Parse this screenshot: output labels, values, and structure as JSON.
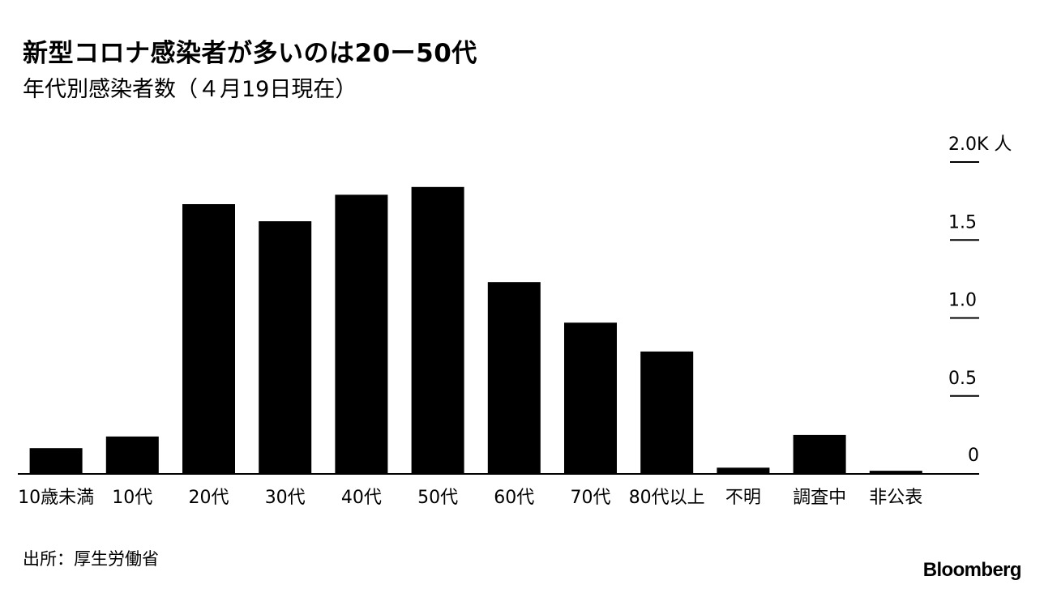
{
  "header": {
    "title": "新型コロナ感染者が多いのは20ー50代",
    "subtitle": "年代別感染者数（４月19日現在）"
  },
  "footer": {
    "source": "出所：厚生労働省",
    "brand": "Bloomberg"
  },
  "chart_data": {
    "type": "bar",
    "categories": [
      "10歳未満",
      "10代",
      "20代",
      "30代",
      "40代",
      "50代",
      "60代",
      "70代",
      "80代以上",
      "不明",
      "調査中",
      "非公表"
    ],
    "values": [
      165,
      240,
      1730,
      1620,
      1790,
      1840,
      1230,
      970,
      785,
      40,
      250,
      20
    ],
    "ylim": [
      0,
      2000
    ],
    "y_ticks": [
      0,
      500,
      1000,
      1500,
      2000
    ],
    "y_tick_labels": [
      "0",
      "0.5",
      "1.0",
      "1.5",
      "2.0K 人"
    ],
    "axis_position": "right",
    "grid": false,
    "colors": {
      "bar": "#000000",
      "axis": "#000000",
      "text": "#000000"
    }
  }
}
